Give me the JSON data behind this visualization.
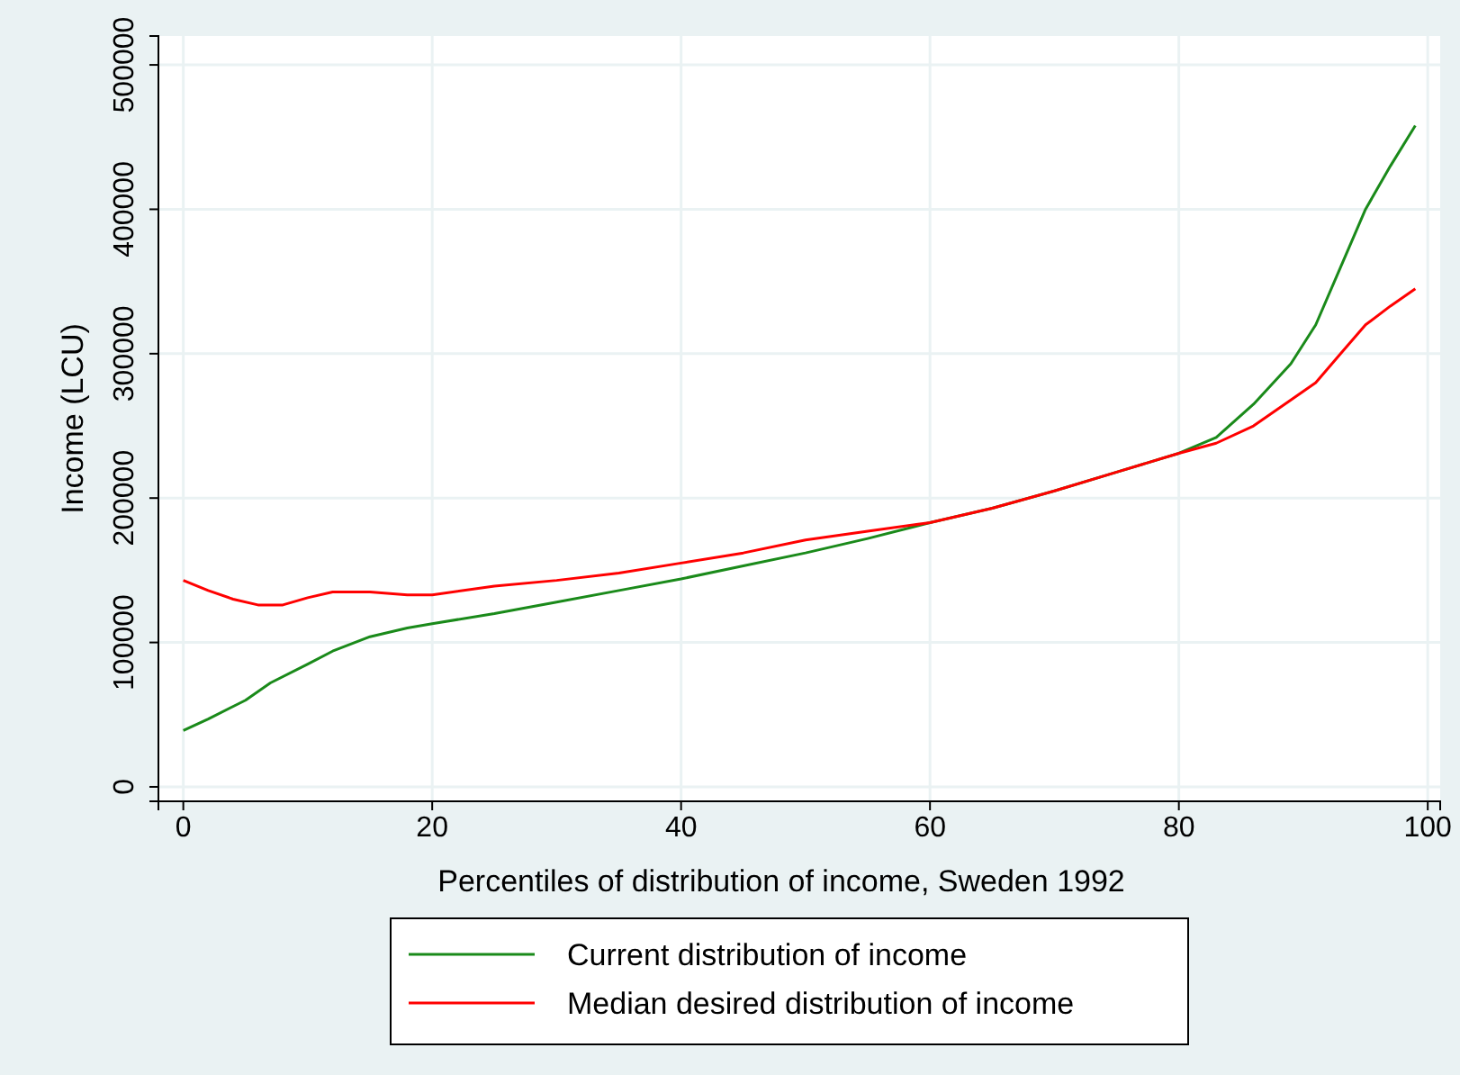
{
  "chart_data": {
    "type": "line",
    "xlabel": "Percentiles of distribution of income, Sweden 1992",
    "ylabel": "Income (LCU)",
    "xlim": [
      -2,
      101
    ],
    "xticks": [
      0,
      20,
      40,
      60,
      80,
      100
    ],
    "ylim": [
      -10000,
      520000
    ],
    "yticks": [
      0,
      100000,
      200000,
      300000,
      400000,
      500000
    ],
    "grid": true,
    "legend": "bottom",
    "line_style": "solid",
    "marker": "none",
    "series": [
      {
        "name": "Current distribution of income",
        "color": "#1a8a1a",
        "x": [
          0,
          2,
          5,
          7,
          10,
          12,
          15,
          18,
          20,
          25,
          30,
          35,
          40,
          45,
          50,
          55,
          60,
          65,
          70,
          75,
          80,
          83,
          86,
          89,
          91,
          93,
          95,
          97,
          99
        ],
        "values": [
          39000,
          47000,
          60000,
          72000,
          85000,
          94000,
          104000,
          110000,
          113000,
          120000,
          128000,
          136000,
          144000,
          153000,
          162000,
          172000,
          183000,
          193000,
          205000,
          218000,
          231000,
          242000,
          265000,
          293000,
          320000,
          360000,
          400000,
          430000,
          458000
        ]
      },
      {
        "name": "Median desired distribution of income",
        "color": "#ff0000",
        "x": [
          0,
          2,
          4,
          6,
          8,
          10,
          12,
          15,
          18,
          20,
          25,
          30,
          35,
          40,
          45,
          50,
          55,
          60,
          65,
          70,
          75,
          80,
          83,
          86,
          89,
          91,
          93,
          95,
          97,
          99
        ],
        "values": [
          143000,
          136000,
          130000,
          126000,
          126000,
          131000,
          135000,
          135000,
          133000,
          133000,
          139000,
          143000,
          148000,
          155000,
          162000,
          171000,
          177000,
          183000,
          193000,
          205000,
          218000,
          231000,
          238000,
          250000,
          268000,
          280000,
          300000,
          320000,
          333000,
          345000
        ]
      }
    ]
  }
}
